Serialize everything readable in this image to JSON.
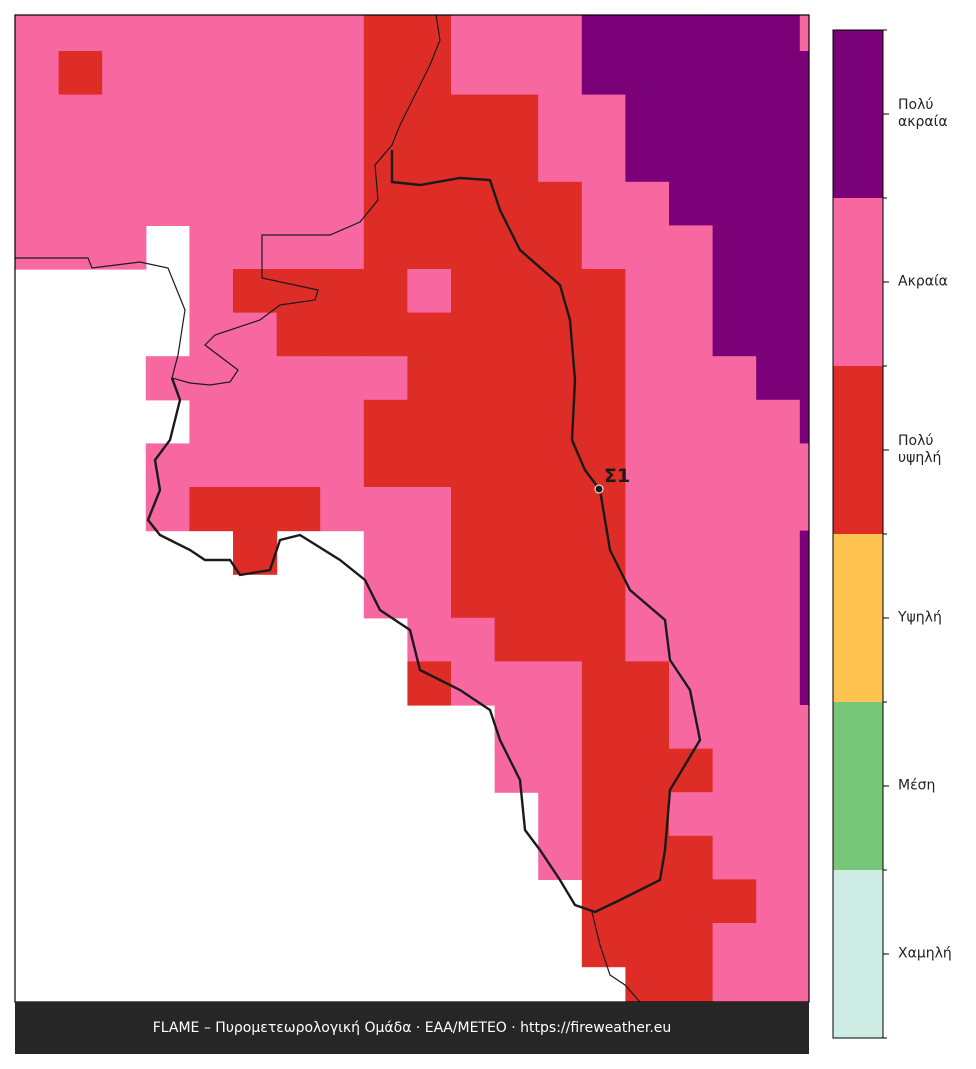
{
  "map": {
    "legend": [
      {
        "label": "Χαμηλή",
        "color": "#cdece4"
      },
      {
        "label": "Μέση",
        "color": "#78c679"
      },
      {
        "label": "Υψηλή",
        "color": "#fec44f"
      },
      {
        "label": "Πολύ υψηλή",
        "color": "#de2d26"
      },
      {
        "label": "Ακραία",
        "color": "#f768a1"
      },
      {
        "label": "Πολύ ακραία",
        "color": "#7a0177"
      }
    ],
    "grid": [
      [
        4,
        4,
        4,
        4,
        4,
        4,
        4,
        4,
        3,
        3,
        4,
        4,
        4,
        5,
        5,
        5,
        5,
        5,
        4
      ],
      [
        4,
        3,
        4,
        4,
        4,
        4,
        4,
        4,
        3,
        3,
        4,
        4,
        4,
        5,
        5,
        5,
        5,
        5,
        5
      ],
      [
        4,
        4,
        4,
        4,
        4,
        4,
        4,
        4,
        3,
        3,
        3,
        3,
        4,
        4,
        5,
        5,
        5,
        5,
        5
      ],
      [
        4,
        4,
        4,
        4,
        4,
        4,
        4,
        4,
        3,
        3,
        3,
        3,
        4,
        4,
        5,
        5,
        5,
        5,
        5
      ],
      [
        4,
        4,
        4,
        4,
        4,
        4,
        4,
        4,
        3,
        3,
        3,
        3,
        3,
        4,
        4,
        5,
        5,
        5,
        5
      ],
      [
        4,
        4,
        4,
        null,
        4,
        4,
        4,
        4,
        3,
        3,
        3,
        3,
        3,
        4,
        4,
        4,
        5,
        5,
        5
      ],
      [
        null,
        null,
        null,
        null,
        4,
        3,
        3,
        3,
        3,
        4,
        3,
        3,
        3,
        3,
        4,
        4,
        5,
        5,
        5
      ],
      [
        null,
        null,
        null,
        null,
        4,
        4,
        3,
        3,
        3,
        3,
        3,
        3,
        3,
        3,
        4,
        4,
        5,
        5,
        5
      ],
      [
        null,
        null,
        null,
        4,
        4,
        4,
        4,
        4,
        4,
        3,
        3,
        3,
        3,
        3,
        4,
        4,
        4,
        5,
        5
      ],
      [
        null,
        null,
        null,
        null,
        4,
        4,
        4,
        4,
        3,
        3,
        3,
        3,
        3,
        3,
        4,
        4,
        4,
        4,
        5
      ],
      [
        null,
        null,
        null,
        4,
        4,
        4,
        4,
        4,
        3,
        3,
        3,
        3,
        3,
        3,
        4,
        4,
        4,
        4,
        4
      ],
      [
        null,
        null,
        null,
        4,
        3,
        3,
        3,
        4,
        4,
        4,
        3,
        3,
        3,
        3,
        4,
        4,
        4,
        4,
        4
      ],
      [
        null,
        null,
        null,
        null,
        null,
        3,
        null,
        null,
        4,
        4,
        3,
        3,
        3,
        3,
        4,
        4,
        4,
        4,
        5
      ],
      [
        null,
        null,
        null,
        null,
        null,
        null,
        null,
        null,
        4,
        4,
        3,
        3,
        3,
        3,
        4,
        4,
        4,
        4,
        5
      ],
      [
        null,
        null,
        null,
        null,
        null,
        null,
        null,
        null,
        null,
        4,
        4,
        3,
        3,
        3,
        4,
        4,
        4,
        4,
        5
      ],
      [
        null,
        null,
        null,
        null,
        null,
        null,
        null,
        null,
        null,
        3,
        4,
        4,
        4,
        3,
        3,
        4,
        4,
        4,
        5
      ],
      [
        null,
        null,
        null,
        null,
        null,
        null,
        null,
        null,
        null,
        null,
        null,
        4,
        4,
        3,
        3,
        4,
        4,
        4,
        4
      ],
      [
        null,
        null,
        null,
        null,
        null,
        null,
        null,
        null,
        null,
        null,
        null,
        4,
        4,
        3,
        3,
        3,
        4,
        4,
        4
      ],
      [
        null,
        null,
        null,
        null,
        null,
        null,
        null,
        null,
        null,
        null,
        null,
        null,
        4,
        3,
        3,
        4,
        4,
        4,
        4
      ],
      [
        null,
        null,
        null,
        null,
        null,
        null,
        null,
        null,
        null,
        null,
        null,
        null,
        4,
        3,
        3,
        3,
        4,
        4,
        4
      ],
      [
        null,
        null,
        null,
        null,
        null,
        null,
        null,
        null,
        null,
        null,
        null,
        null,
        null,
        3,
        3,
        3,
        3,
        4,
        4
      ],
      [
        null,
        null,
        null,
        null,
        null,
        null,
        null,
        null,
        null,
        null,
        null,
        null,
        null,
        3,
        3,
        3,
        4,
        4,
        4
      ],
      [
        null,
        null,
        null,
        null,
        null,
        null,
        null,
        null,
        null,
        null,
        null,
        null,
        null,
        null,
        3,
        3,
        4,
        4,
        4
      ]
    ],
    "point_label": "Σ1",
    "footer": "FLAME – Πυρομετεωρολογική Ομάδα · ΕΑΑ/METEO · https://fireweather.eu"
  }
}
